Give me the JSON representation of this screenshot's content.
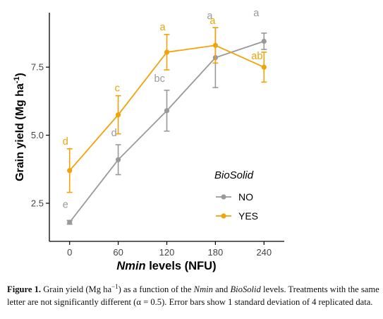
{
  "chart_data": {
    "type": "line",
    "x_label_var": "Nmin",
    "x_label_rest": " levels (NFU)",
    "ylabel_main": "Grain yield (Mg ha",
    "ylabel_sup": "-1",
    "ylabel_close": ")",
    "x_ticks": [
      "0",
      "60",
      "120",
      "180",
      "240"
    ],
    "y_ticks": [
      "2.5",
      "5.0",
      "7.5"
    ],
    "x": [
      0,
      60,
      120,
      180,
      240
    ],
    "xlim": [
      -25,
      265
    ],
    "ylim": [
      1.1,
      9.5
    ],
    "legend": {
      "title": "BioSolid",
      "placement": "center-right"
    },
    "series": [
      {
        "name": "NO",
        "color": "#999999",
        "values": [
          1.8,
          4.1,
          5.9,
          7.85,
          8.45
        ],
        "errors": [
          0.07,
          0.55,
          0.75,
          1.1,
          0.3
        ],
        "letters": [
          "e",
          "d",
          "bc",
          "a",
          "a"
        ]
      },
      {
        "name": "YES",
        "color": "#f0a30a",
        "values": [
          3.7,
          5.75,
          8.05,
          8.3,
          7.5
        ],
        "errors": [
          0.8,
          0.7,
          0.65,
          0.65,
          0.55
        ],
        "letters": [
          "d",
          "c",
          "a",
          "a",
          "ab"
        ]
      }
    ]
  },
  "caption": {
    "label": "Figure 1.",
    "part1": " Grain yield (Mg ha",
    "sup": "−1",
    "part2": ") as a function of the ",
    "var1": "Nmin",
    "part3": " and ",
    "var2": "BioSolid",
    "part4": " levels. Treatments with the same letter are not significantly different (α = 0.5). Error bars show 1 standard deviation of 4 replicated data."
  }
}
